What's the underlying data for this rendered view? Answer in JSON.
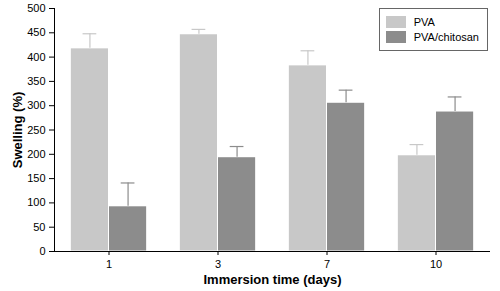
{
  "chart_data": {
    "type": "bar",
    "x_label": "Immersion time (days)",
    "y_label": "Swelling (%)",
    "categories": [
      "1",
      "3",
      "7",
      "10"
    ],
    "series": [
      {
        "name": "PVA",
        "color": "#c8c8c8",
        "values": [
          418,
          447,
          383,
          198
        ],
        "errors": [
          30,
          10,
          30,
          22
        ]
      },
      {
        "name": "PVA/chitosan",
        "color": "#8c8c8c",
        "values": [
          93,
          194,
          306,
          288
        ],
        "errors": [
          48,
          22,
          26,
          30
        ]
      }
    ],
    "ylim": [
      0,
      500
    ],
    "yticks": [
      0,
      50,
      100,
      150,
      200,
      250,
      300,
      350,
      400,
      450,
      500
    ],
    "grid": false,
    "legend": "top-right"
  }
}
